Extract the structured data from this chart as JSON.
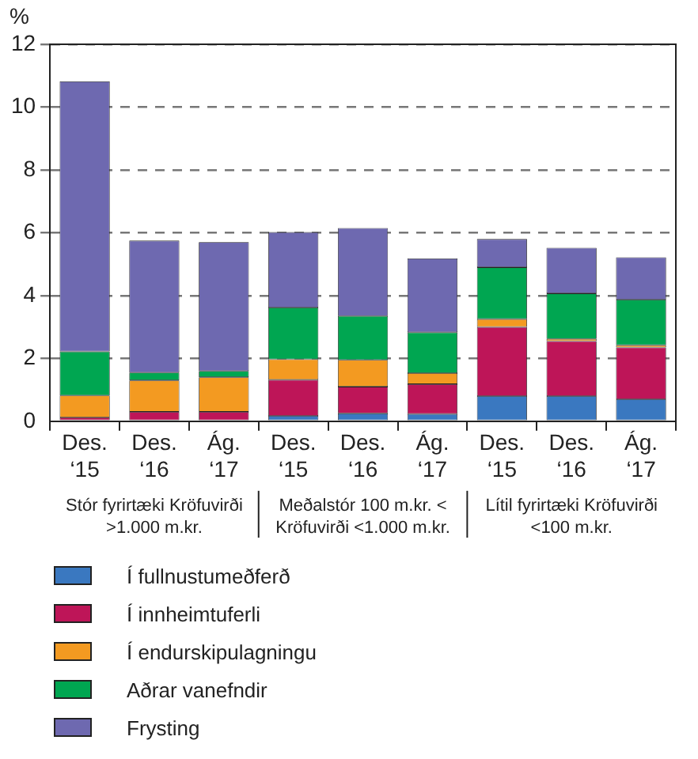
{
  "chart_data": {
    "type": "bar",
    "stacked": true,
    "ylabel": "%",
    "categories": [
      "Des. ‘15",
      "Des. ‘16",
      "Ág. ‘17",
      "Des. ‘15",
      "Des. ‘16",
      "Ág. ‘17",
      "Des. ‘15",
      "Des. ‘16",
      "Ág. ‘17"
    ],
    "series": [
      {
        "name": "Í fullnustumeðferð",
        "color": "#3a78c0",
        "values": [
          null,
          null,
          null,
          0.17,
          0.25,
          0.23,
          0.8,
          0.8,
          0.7
        ]
      },
      {
        "name": "Í innheimtuferli",
        "color": "#be1558",
        "values": [
          0.12,
          0.3,
          0.3,
          1.15,
          0.85,
          0.95,
          2.2,
          1.75,
          1.65
        ]
      },
      {
        "name": "Í endurskipulagningu",
        "color": "#f39a21",
        "values": [
          0.7,
          1.0,
          1.1,
          0.65,
          0.85,
          0.35,
          0.25,
          0.07,
          0.07
        ]
      },
      {
        "name": "Aðrar vanefndir",
        "color": "#00a651",
        "values": [
          1.4,
          0.25,
          0.2,
          1.65,
          1.4,
          1.3,
          1.65,
          1.45,
          1.45
        ]
      },
      {
        "name": "Frysting",
        "color": "#6e69b0",
        "values": [
          8.6,
          4.2,
          4.1,
          2.4,
          2.8,
          2.35,
          0.9,
          1.45,
          1.35
        ]
      }
    ],
    "ylim": [
      0,
      12
    ],
    "yticks": [
      0,
      2,
      4,
      6,
      8,
      10,
      12
    ],
    "grid": "y",
    "legend": "bottom",
    "annotations": [
      "Stór fyrirtæki Kröfuvirði >1.000 m.kr.",
      "Meðalstór 100 m.kr. < Kröfuvirði <1.000 m.kr.",
      "Lítil fyrirtæki Kröfuvirði <100 m.kr."
    ]
  }
}
